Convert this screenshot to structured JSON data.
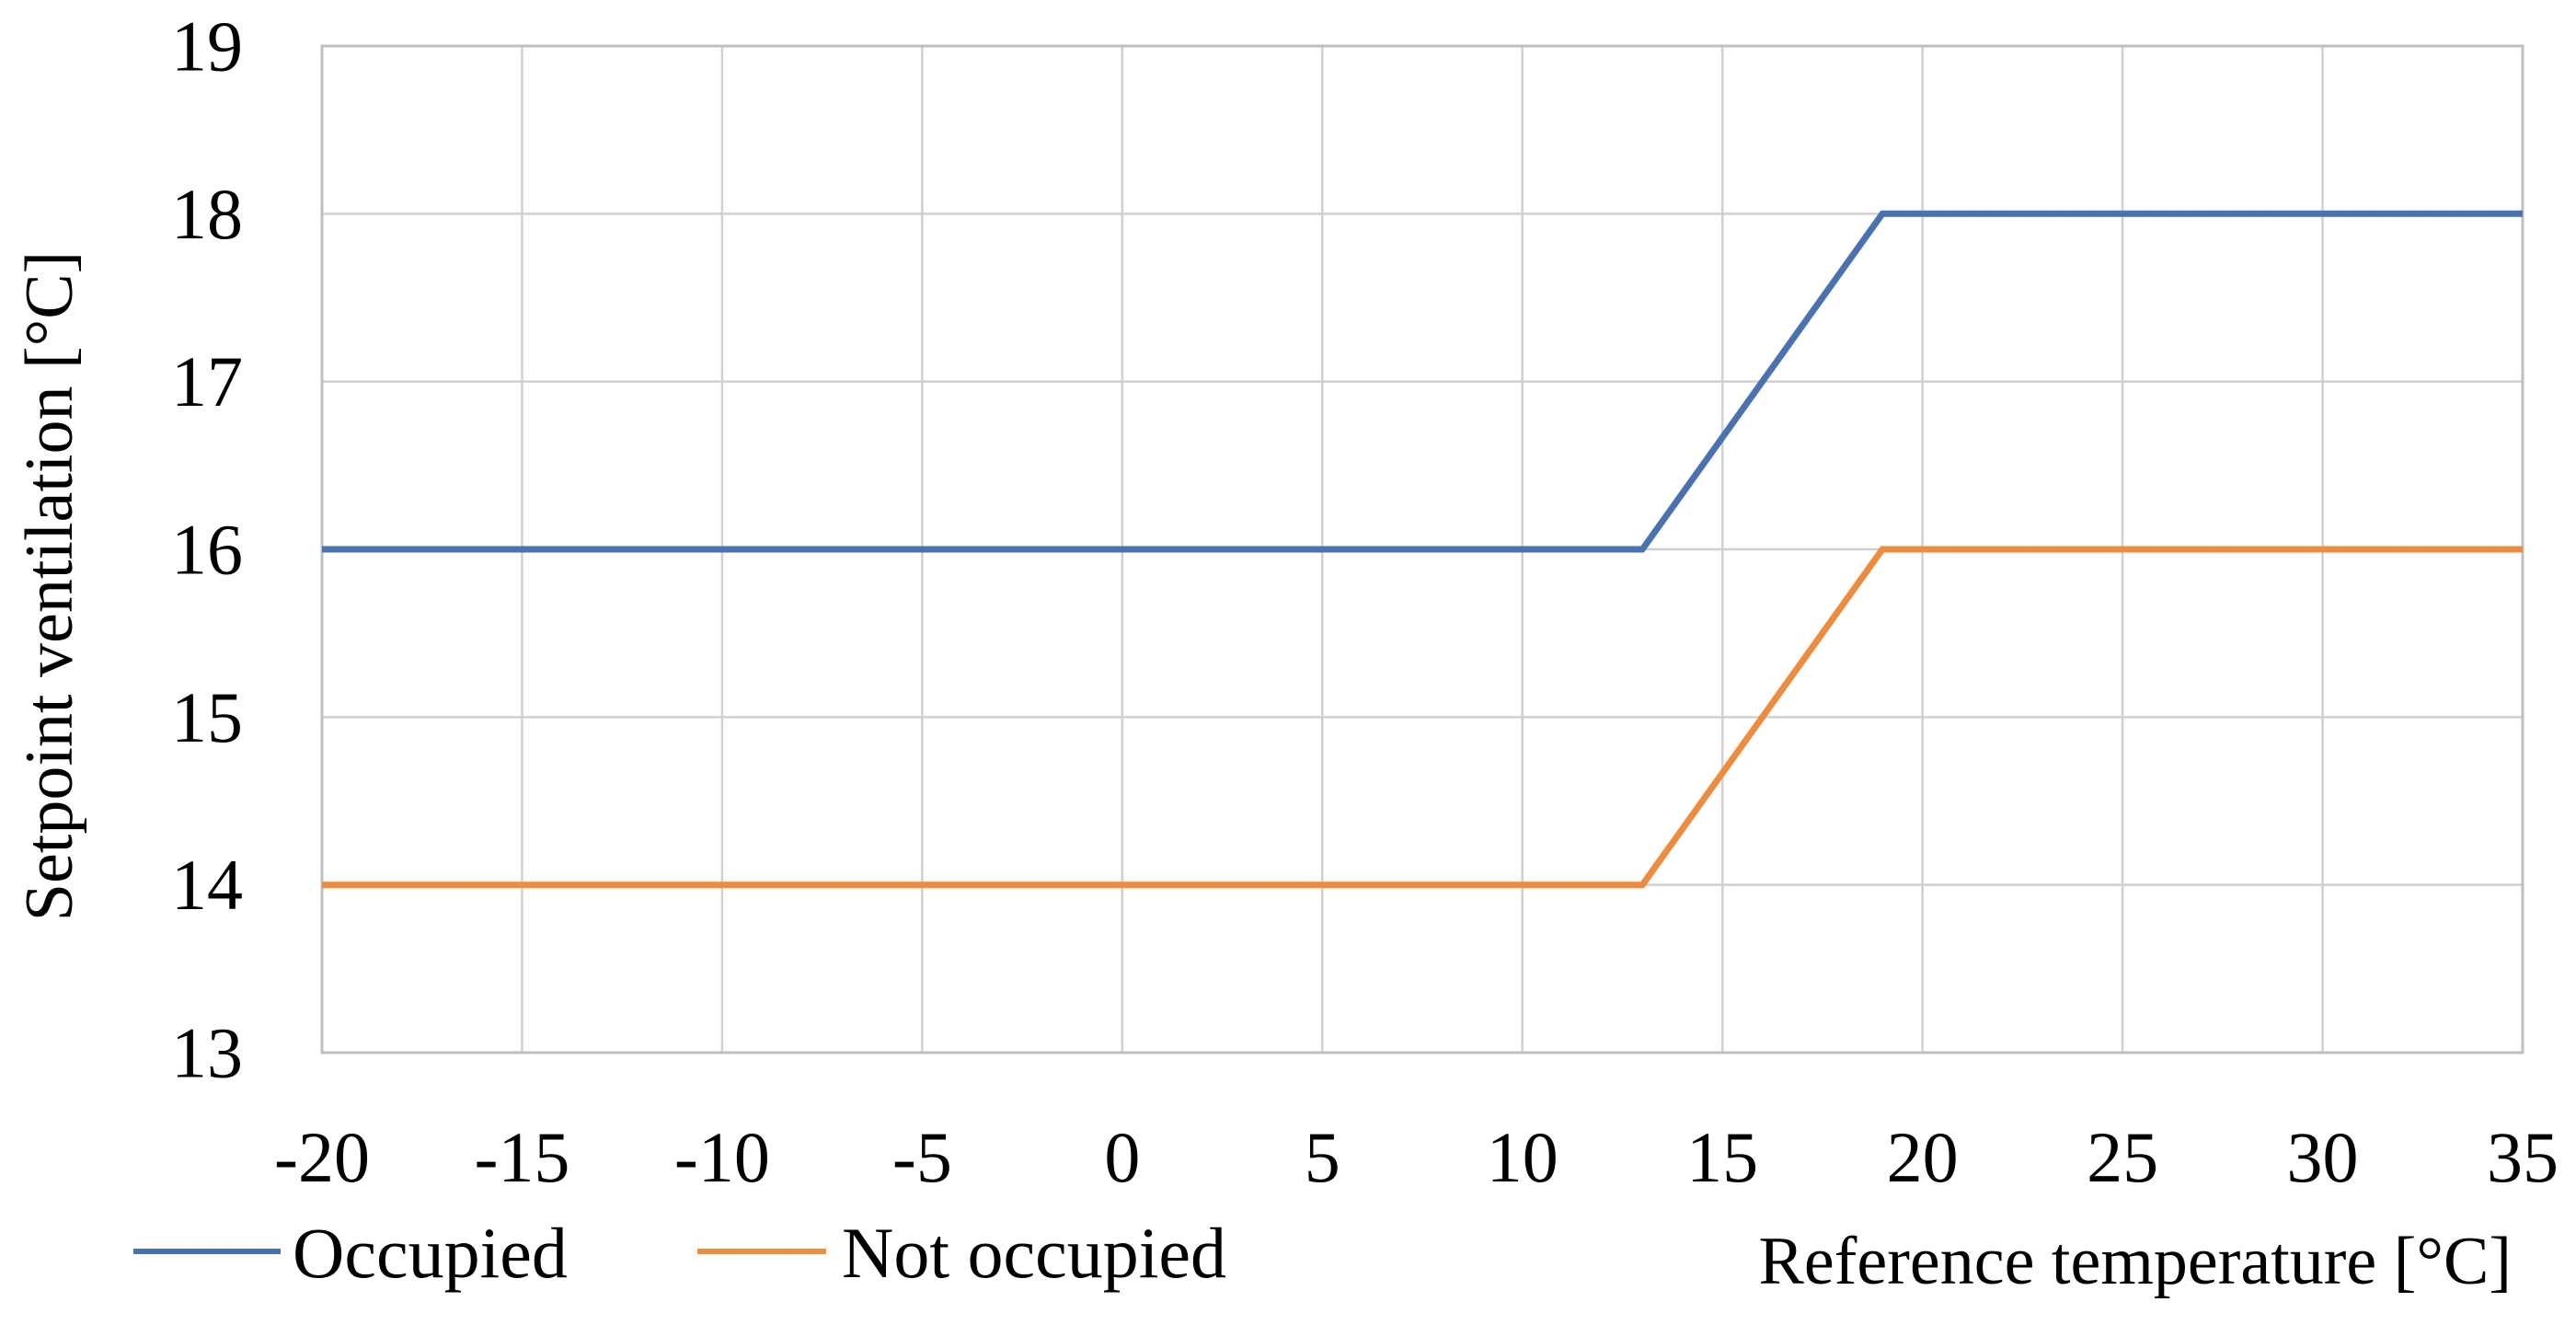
{
  "chart_data": {
    "type": "line",
    "xlabel": "Reference  temperature  [°C]",
    "ylabel": "Setpoint  ventilation  [°C]",
    "xlim": [
      -20,
      35
    ],
    "ylim": [
      13,
      19
    ],
    "xticks": [
      -20,
      -15,
      -10,
      -5,
      0,
      5,
      10,
      15,
      20,
      25,
      30,
      35
    ],
    "yticks": [
      13,
      14,
      15,
      16,
      17,
      18,
      19
    ],
    "x_tick_labels": [
      "-20",
      "-15",
      "-10",
      "-5",
      "0",
      "5",
      "10",
      "15",
      "20",
      "25",
      "30",
      "35"
    ],
    "y_tick_labels": [
      "13",
      "14",
      "15",
      "16",
      "17",
      "18",
      "19"
    ],
    "grid": true,
    "legend_position": "bottom-left",
    "series": [
      {
        "name": "Occupied",
        "color": "#4a72b0",
        "x": [
          -20,
          13,
          19,
          35
        ],
        "y": [
          16,
          16,
          18,
          18
        ]
      },
      {
        "name": "Not occupied",
        "color": "#ed8b3f",
        "x": [
          -20,
          13,
          19,
          35
        ],
        "y": [
          14,
          14,
          16,
          16
        ]
      }
    ]
  }
}
